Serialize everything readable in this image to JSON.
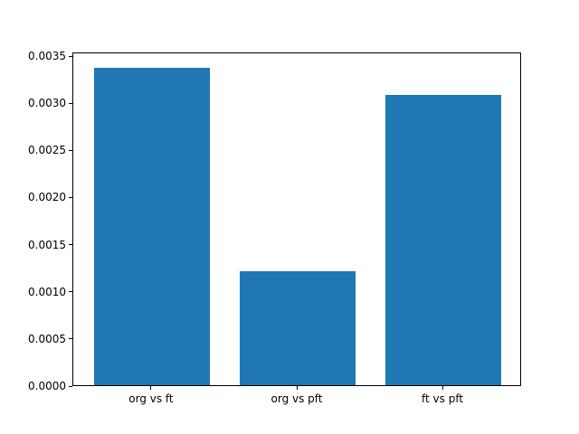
{
  "chart_data": {
    "type": "bar",
    "categories": [
      "org vs ft",
      "org vs pft",
      "ft vs pft"
    ],
    "values": [
      0.00337,
      0.00121,
      0.00308
    ],
    "title": "",
    "xlabel": "",
    "ylabel": "",
    "ylim": [
      0,
      0.003539
    ],
    "yticks": [
      0.0,
      0.0005,
      0.001,
      0.0015,
      0.002,
      0.0025,
      0.003,
      0.0035
    ],
    "ytick_labels": [
      "0.0000",
      "0.0005",
      "0.0010",
      "0.0015",
      "0.0020",
      "0.0025",
      "0.0030",
      "0.0035"
    ],
    "bar_color": "#1f77b4",
    "bar_width_units": 0.8,
    "xlim": [
      -0.54,
      2.54
    ],
    "grid": false,
    "legend": "none"
  }
}
